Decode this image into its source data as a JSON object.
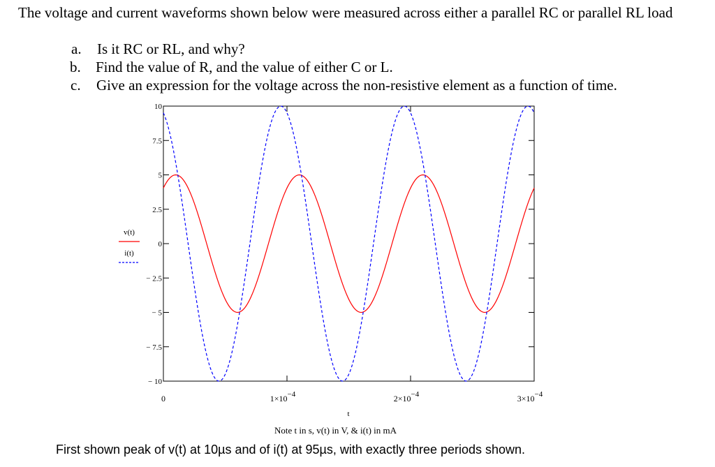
{
  "problem": {
    "statement": "The voltage and current waveforms shown below were measured across either a parallel RC or parallel RL load",
    "questions": [
      {
        "letter": "a.",
        "text": "Is it RC or RL, and why?"
      },
      {
        "letter": "b.",
        "text": "Find the value of R, and the value of either C or L."
      },
      {
        "letter": "c.",
        "text": "Give an expression for the voltage across the non-resistive element as a function of time."
      }
    ]
  },
  "chart_data": {
    "type": "line",
    "title": "",
    "xlabel": "t",
    "ylabel": "",
    "xlim": [
      0,
      0.0003
    ],
    "ylim": [
      -10,
      10
    ],
    "grid": false,
    "legend_position": "left",
    "x_ticks": [
      {
        "value": 0,
        "label": "0"
      },
      {
        "value": 0.0001,
        "base": "1×10",
        "exp": "−4"
      },
      {
        "value": 0.0002,
        "base": "2×10",
        "exp": "−4"
      },
      {
        "value": 0.0003,
        "base": "3×10",
        "exp": "−4"
      }
    ],
    "y_ticks": [
      {
        "value": 10,
        "label": "10"
      },
      {
        "value": 7.5,
        "label": "7.5"
      },
      {
        "value": 5,
        "label": "5"
      },
      {
        "value": 2.5,
        "label": "2.5"
      },
      {
        "value": 0,
        "label": "0"
      },
      {
        "value": -2.5,
        "label": "− 2.5"
      },
      {
        "value": -5,
        "label": "− 5"
      },
      {
        "value": -7.5,
        "label": "− 7.5"
      },
      {
        "value": -10,
        "label": "− 10"
      }
    ],
    "series": [
      {
        "name": "v(t)",
        "style": "solid",
        "color": "#ff0000",
        "amplitude": 5,
        "period": 0.0001,
        "first_peak_t": 1e-05,
        "sample_step": 1e-06
      },
      {
        "name": "i(t)",
        "style": "dashed",
        "color": "#0000ff",
        "amplitude": 10,
        "period": 0.0001,
        "first_peak_t": 9.5e-05,
        "sample_step": 1e-06
      }
    ]
  },
  "captions": {
    "note": "Note t in s, v(t) in V, & i(t) in mA",
    "summary": "First shown peak of v(t) at 10µs and of i(t) at 95µs, with exactly three periods shown."
  }
}
